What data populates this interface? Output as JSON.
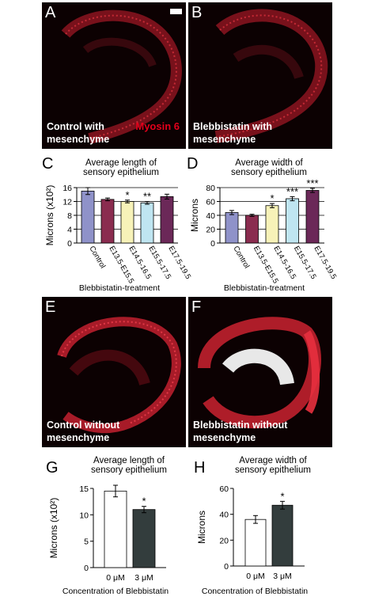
{
  "panels": {
    "A": {
      "letter": "A",
      "caption": "Control with\nmesenchyme",
      "stain": "Myosin 6"
    },
    "B": {
      "letter": "B",
      "caption": "Blebbistatin with\nmesenchyme"
    },
    "E": {
      "letter": "E",
      "caption": "Control without\nmesenchyme"
    },
    "F": {
      "letter": "F",
      "caption": "Blebbistatin without\nmesenchyme"
    }
  },
  "chart_letters": {
    "C": "C",
    "D": "D",
    "G": "G",
    "H": "H"
  },
  "colors": {
    "control": "#8f92c9",
    "e13": "#8a2c4f",
    "e14": "#f7f2b8",
    "e15": "#bfe5f1",
    "e17": "#6b2858",
    "open": "#ffffff",
    "dark": "#333d3d",
    "stain": "#e3001b"
  },
  "chart_data": [
    {
      "id": "C",
      "type": "bar",
      "title": "Average length of\nsensory epithelium",
      "ylabel": "Microns (x10²)",
      "xlabel": "Blebbistatin-treatment",
      "ylim": [
        0,
        16
      ],
      "yticks": [
        "0",
        "4",
        "8",
        "12",
        "16"
      ],
      "grid": true,
      "categories": [
        "Control",
        "E13.5-E15.5",
        "E14.5-16.5",
        "E15.5-17.5",
        "E17.5-19.5"
      ],
      "values": [
        15.0,
        12.6,
        12.0,
        11.6,
        13.4
      ],
      "errors": [
        1.0,
        0.4,
        0.4,
        0.4,
        0.7
      ],
      "significance": [
        "",
        "",
        "*",
        "**",
        ""
      ],
      "colors": [
        "#8f92c9",
        "#8a2c4f",
        "#f7f2b8",
        "#bfe5f1",
        "#6b2858"
      ]
    },
    {
      "id": "D",
      "type": "bar",
      "title": "Average width of\nsensory epithelium",
      "ylabel": "Microns",
      "xlabel": "Blebbistatin-treatment",
      "ylim": [
        0,
        80
      ],
      "yticks": [
        "0",
        "20",
        "40",
        "60",
        "80"
      ],
      "grid": true,
      "categories": [
        "Control",
        "E13.5-E15.5",
        "E14.5-16.5",
        "E15.5-17.5",
        "E17.5-19.5"
      ],
      "values": [
        44,
        40,
        54,
        64,
        76
      ],
      "errors": [
        3,
        1.5,
        3,
        3,
        3
      ],
      "significance": [
        "",
        "",
        "*",
        "***",
        "***"
      ],
      "colors": [
        "#8f92c9",
        "#8a2c4f",
        "#f7f2b8",
        "#bfe5f1",
        "#6b2858"
      ]
    },
    {
      "id": "G",
      "type": "bar",
      "title": "Average length of\nsensory epithelium",
      "ylabel": "Microns (x10²)",
      "xlabel": "Concentration of Blebbistatin",
      "ylim": [
        0,
        15
      ],
      "yticks": [
        "0",
        "5",
        "10",
        "15"
      ],
      "grid": false,
      "categories": [
        "0 μM",
        "3 μM"
      ],
      "values": [
        14.5,
        11.0
      ],
      "errors": [
        1.1,
        0.6
      ],
      "significance": [
        "",
        "*"
      ],
      "colors": [
        "#ffffff",
        "#333d3d"
      ]
    },
    {
      "id": "H",
      "type": "bar",
      "title": "Average width of\nsensory epithelium",
      "ylabel": "Microns",
      "xlabel": "Concentration of Blebbistatin",
      "ylim": [
        0,
        60
      ],
      "yticks": [
        "0",
        "20",
        "40",
        "60"
      ],
      "grid": false,
      "categories": [
        "0 μM",
        "3 μM"
      ],
      "values": [
        36,
        47
      ],
      "errors": [
        3,
        3
      ],
      "significance": [
        "",
        "*"
      ],
      "colors": [
        "#ffffff",
        "#333d3d"
      ]
    }
  ]
}
